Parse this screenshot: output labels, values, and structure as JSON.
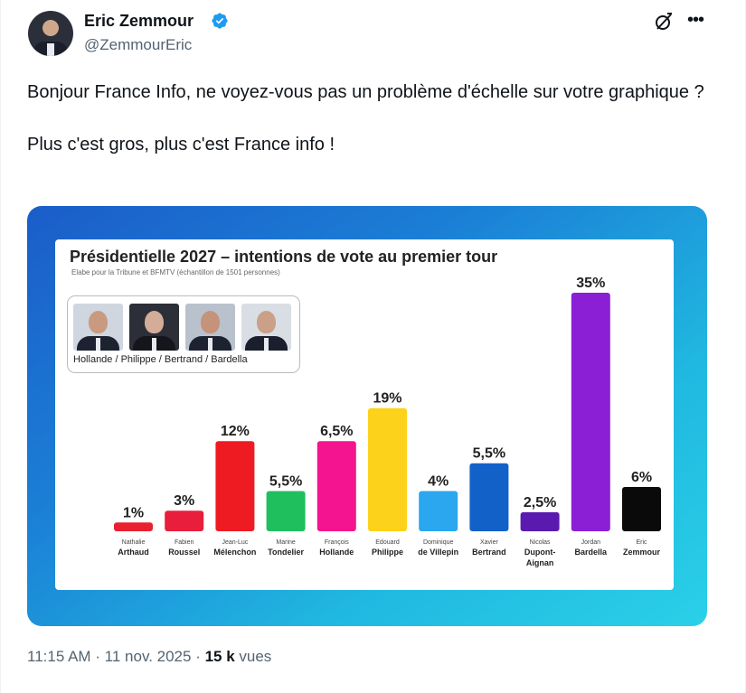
{
  "tweet": {
    "author_name": "Eric Zemmour",
    "author_handle": "@ZemmourEric",
    "text_line1": "Bonjour France Info, ne voyez-vous pas un problème d'échelle sur votre graphique ?",
    "text_line2": "Plus c'est gros, plus c'est France info !",
    "timestamp": "11:15 AM · 11 nov. 2025",
    "separator": " · ",
    "views_count": "15 k",
    "views_label": " vues",
    "icons": [
      "verified-badge-icon",
      "grok-icon",
      "more-icon",
      "avatar"
    ],
    "verified_color": "#1d9bf0"
  },
  "chart_data": {
    "type": "bar",
    "title": "Présidentielle 2027 – intentions de vote au premier tour",
    "subtitle": "Elabe pour la Tribune et  BFMTV (échantillon de 1501 personnes)",
    "legend_caption": "Hollande / Philippe / Bertrand / Bardella",
    "categories": [
      {
        "first": "Nathalie",
        "last": "Arthaud"
      },
      {
        "first": "Fabien",
        "last": "Roussel"
      },
      {
        "first": "Jean-Luc",
        "last": "Mélenchon"
      },
      {
        "first": "Marine",
        "last": "Tondelier"
      },
      {
        "first": "François",
        "last": "Hollande"
      },
      {
        "first": "Edouard",
        "last": "Philippe"
      },
      {
        "first": "Dominique",
        "last": "de Villepin"
      },
      {
        "first": "Xavier",
        "last": "Bertrand"
      },
      {
        "first": "Nicolas",
        "last": "Dupont-Aignan"
      },
      {
        "first": "Jordan",
        "last": "Bardella"
      },
      {
        "first": "Eric",
        "last": "Zemmour"
      }
    ],
    "values": [
      1,
      3,
      12,
      5.5,
      6.5,
      19,
      4,
      5.5,
      2.5,
      35,
      6
    ],
    "labels": [
      "1%",
      "3%",
      "12%",
      "5,5%",
      "6,5%",
      "19%",
      "4%",
      "5,5%",
      "2,5%",
      "35%",
      "6%"
    ],
    "displayed_heights_pct": [
      1.7,
      4.0,
      17.5,
      7.8,
      17.5,
      23.9,
      7.8,
      13.2,
      3.7,
      46.3,
      8.6
    ],
    "colors": [
      "#e8202f",
      "#e91e3c",
      "#ef1b22",
      "#1fbf5e",
      "#f5148f",
      "#fcd21a",
      "#2aa7ee",
      "#1261c9",
      "#5a1ab0",
      "#8a1fd6",
      "#0a0a0a"
    ],
    "grid": false,
    "legend_position": "top-left"
  }
}
